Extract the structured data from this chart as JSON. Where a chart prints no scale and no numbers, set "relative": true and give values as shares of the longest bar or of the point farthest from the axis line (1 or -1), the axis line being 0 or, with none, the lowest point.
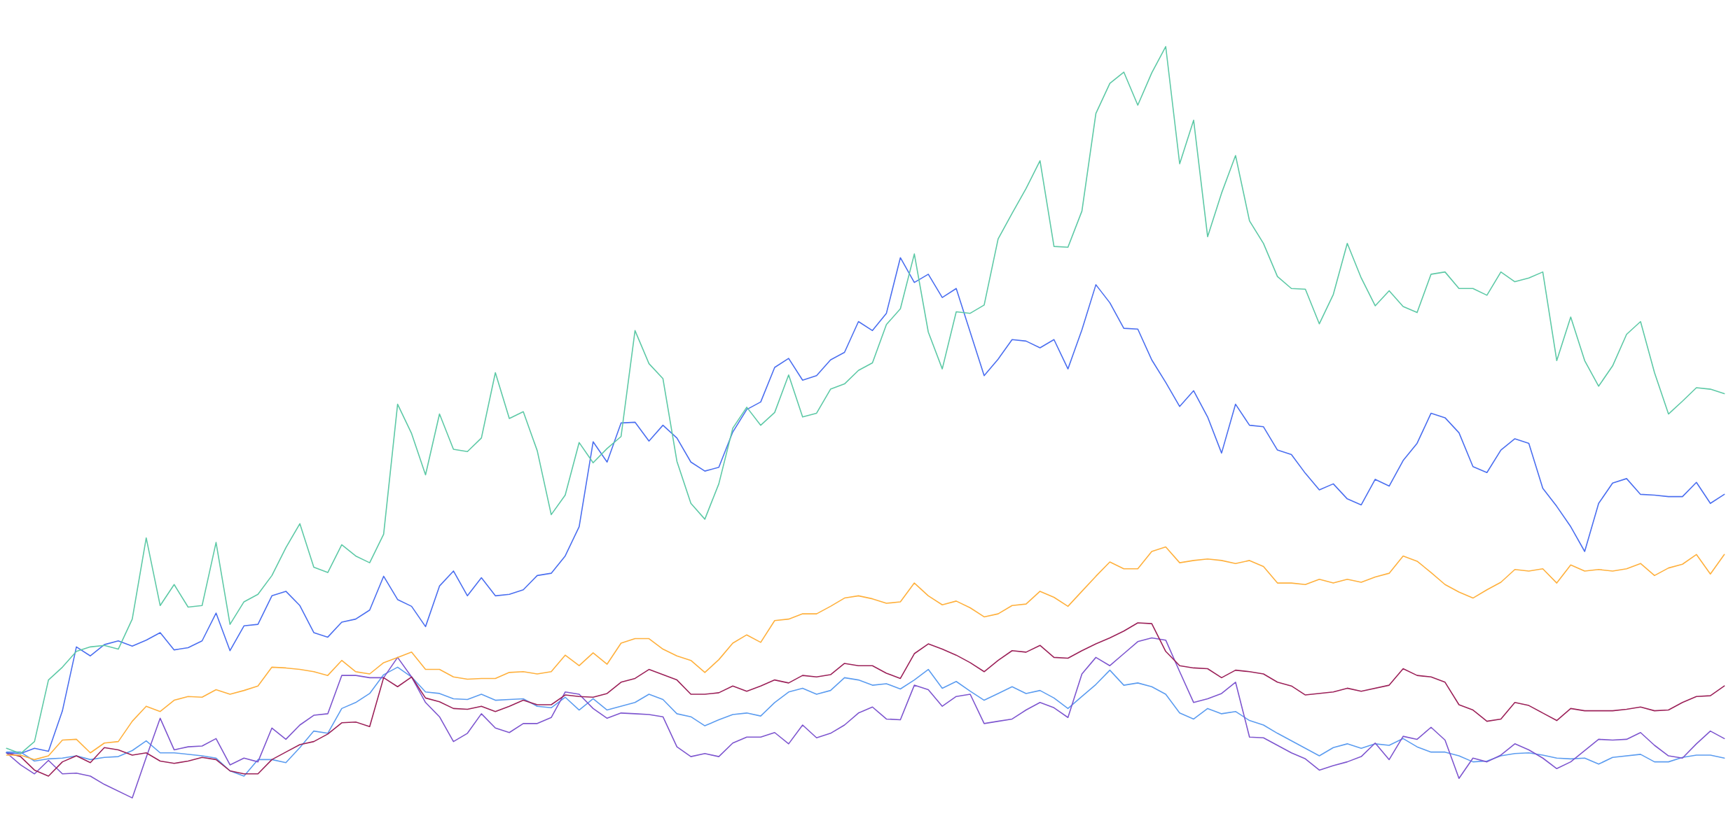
{
  "chart_data": {
    "type": "line",
    "relative": true,
    "categories": [
      null,
      null,
      null,
      null,
      null,
      null,
      null,
      null,
      null,
      null,
      null,
      null,
      null,
      null,
      null,
      null,
      null,
      null,
      null,
      null,
      null,
      null,
      null,
      null,
      null,
      null,
      null,
      null,
      null,
      null,
      null,
      null,
      null,
      null,
      null,
      null,
      null,
      null,
      null,
      null,
      null,
      null,
      null,
      null,
      null,
      null,
      null,
      null,
      null,
      null,
      null,
      null,
      null,
      null,
      null,
      null,
      null,
      null,
      null,
      null,
      null,
      null,
      null,
      null,
      null,
      null,
      null,
      null,
      null,
      null,
      null,
      null,
      null,
      null,
      null,
      null,
      null,
      null,
      null,
      null,
      null,
      null,
      null,
      null,
      null,
      null,
      null,
      null,
      null,
      null,
      null,
      null,
      null,
      null,
      null,
      null,
      null,
      null,
      null,
      null,
      null,
      null,
      null,
      null,
      null,
      null,
      null,
      null,
      null,
      null,
      null,
      null,
      null,
      null,
      null,
      null,
      null,
      null,
      null,
      null,
      null,
      null,
      null,
      null
    ],
    "series": [
      {
        "color": "#5b9cf0",
        "values": [
          0.061,
          0.061,
          0.049,
          0.052,
          0.053,
          0.056,
          0.051,
          0.054,
          0.055,
          0.063,
          0.076,
          0.06,
          0.06,
          0.058,
          0.056,
          0.053,
          0.036,
          0.029,
          0.051,
          0.051,
          0.047,
          0.067,
          0.089,
          0.086,
          0.119,
          0.127,
          0.139,
          0.164,
          0.174,
          0.161,
          0.141,
          0.139,
          0.132,
          0.131,
          0.138,
          0.13,
          0.131,
          0.132,
          0.122,
          0.12,
          0.134,
          0.117,
          0.132,
          0.117,
          0.122,
          0.127,
          0.138,
          0.131,
          0.112,
          0.108,
          0.096,
          0.104,
          0.111,
          0.113,
          0.109,
          0.127,
          0.141,
          0.146,
          0.138,
          0.143,
          0.16,
          0.157,
          0.15,
          0.152,
          0.145,
          0.157,
          0.171,
          0.146,
          0.155,
          0.142,
          0.13,
          0.139,
          0.148,
          0.139,
          0.143,
          0.133,
          0.119,
          0.135,
          0.151,
          0.17,
          0.15,
          0.153,
          0.148,
          0.138,
          0.113,
          0.105,
          0.119,
          0.112,
          0.115,
          0.103,
          0.097,
          0.086,
          0.076,
          0.066,
          0.056,
          0.067,
          0.072,
          0.066,
          0.072,
          0.07,
          0.079,
          0.068,
          0.061,
          0.061,
          0.056,
          0.048,
          0.049,
          0.056,
          0.059,
          0.06,
          0.057,
          0.053,
          0.052,
          0.053,
          0.045,
          0.054,
          0.056,
          0.058,
          0.048,
          0.048,
          0.054,
          0.057,
          0.057,
          0.053
        ]
      },
      {
        "color": "#7d55cf",
        "values": [
          0.06,
          0.044,
          0.032,
          0.05,
          0.032,
          0.033,
          0.029,
          0.018,
          0.009,
          0.0,
          0.054,
          0.106,
          0.064,
          0.068,
          0.069,
          0.079,
          0.044,
          0.053,
          0.048,
          0.093,
          0.078,
          0.097,
          0.11,
          0.112,
          0.163,
          0.163,
          0.16,
          0.16,
          0.187,
          0.161,
          0.127,
          0.108,
          0.075,
          0.086,
          0.112,
          0.093,
          0.087,
          0.099,
          0.099,
          0.107,
          0.141,
          0.138,
          0.119,
          0.106,
          0.113,
          0.112,
          0.111,
          0.108,
          0.068,
          0.055,
          0.059,
          0.055,
          0.073,
          0.081,
          0.081,
          0.087,
          0.072,
          0.097,
          0.08,
          0.086,
          0.097,
          0.113,
          0.121,
          0.105,
          0.104,
          0.15,
          0.144,
          0.122,
          0.135,
          0.138,
          0.099,
          0.102,
          0.105,
          0.117,
          0.127,
          0.12,
          0.107,
          0.165,
          0.187,
          0.176,
          0.192,
          0.208,
          0.213,
          0.21,
          0.168,
          0.127,
          0.132,
          0.139,
          0.154,
          0.081,
          0.08,
          0.07,
          0.06,
          0.052,
          0.037,
          0.043,
          0.048,
          0.055,
          0.073,
          0.051,
          0.082,
          0.078,
          0.094,
          0.077,
          0.026,
          0.053,
          0.048,
          0.057,
          0.072,
          0.064,
          0.053,
          0.039,
          0.048,
          0.063,
          0.078,
          0.077,
          0.078,
          0.087,
          0.07,
          0.056,
          0.053,
          0.072,
          0.089,
          0.079
        ]
      },
      {
        "color": "#9b2058",
        "values": [
          0.06,
          0.055,
          0.037,
          0.029,
          0.048,
          0.056,
          0.047,
          0.067,
          0.064,
          0.057,
          0.06,
          0.049,
          0.046,
          0.049,
          0.054,
          0.051,
          0.036,
          0.032,
          0.032,
          0.051,
          0.061,
          0.071,
          0.075,
          0.085,
          0.1,
          0.101,
          0.095,
          0.16,
          0.148,
          0.161,
          0.133,
          0.128,
          0.119,
          0.118,
          0.122,
          0.115,
          0.122,
          0.13,
          0.124,
          0.124,
          0.137,
          0.135,
          0.134,
          0.139,
          0.154,
          0.159,
          0.171,
          0.164,
          0.157,
          0.138,
          0.138,
          0.14,
          0.149,
          0.142,
          0.149,
          0.157,
          0.153,
          0.163,
          0.161,
          0.164,
          0.179,
          0.176,
          0.176,
          0.166,
          0.159,
          0.192,
          0.205,
          0.198,
          0.19,
          0.18,
          0.168,
          0.183,
          0.196,
          0.194,
          0.203,
          0.187,
          0.186,
          0.196,
          0.205,
          0.213,
          0.222,
          0.233,
          0.232,
          0.195,
          0.176,
          0.173,
          0.172,
          0.16,
          0.17,
          0.168,
          0.165,
          0.154,
          0.149,
          0.137,
          0.139,
          0.141,
          0.146,
          0.142,
          0.146,
          0.15,
          0.172,
          0.163,
          0.161,
          0.154,
          0.124,
          0.117,
          0.102,
          0.105,
          0.127,
          0.123,
          0.113,
          0.103,
          0.119,
          0.116,
          0.116,
          0.116,
          0.118,
          0.121,
          0.116,
          0.117,
          0.127,
          0.135,
          0.136,
          0.149
        ]
      },
      {
        "color": "#ffb03c",
        "values": [
          0.057,
          0.057,
          0.051,
          0.056,
          0.077,
          0.078,
          0.06,
          0.073,
          0.075,
          0.102,
          0.122,
          0.115,
          0.13,
          0.135,
          0.134,
          0.144,
          0.138,
          0.143,
          0.149,
          0.174,
          0.173,
          0.171,
          0.168,
          0.163,
          0.183,
          0.168,
          0.165,
          0.18,
          0.187,
          0.194,
          0.171,
          0.171,
          0.161,
          0.158,
          0.159,
          0.159,
          0.167,
          0.168,
          0.165,
          0.168,
          0.19,
          0.176,
          0.193,
          0.178,
          0.206,
          0.212,
          0.212,
          0.198,
          0.189,
          0.183,
          0.167,
          0.184,
          0.206,
          0.217,
          0.207,
          0.236,
          0.238,
          0.245,
          0.245,
          0.255,
          0.266,
          0.269,
          0.265,
          0.259,
          0.261,
          0.286,
          0.269,
          0.257,
          0.262,
          0.253,
          0.241,
          0.245,
          0.256,
          0.258,
          0.275,
          0.267,
          0.255,
          0.275,
          0.295,
          0.314,
          0.305,
          0.305,
          0.328,
          0.334,
          0.313,
          0.316,
          0.318,
          0.316,
          0.312,
          0.316,
          0.308,
          0.286,
          0.286,
          0.284,
          0.291,
          0.286,
          0.291,
          0.287,
          0.294,
          0.299,
          0.322,
          0.315,
          0.3,
          0.284,
          0.274,
          0.266,
          0.277,
          0.287,
          0.304,
          0.302,
          0.305,
          0.286,
          0.31,
          0.302,
          0.304,
          0.302,
          0.305,
          0.312,
          0.296,
          0.306,
          0.311,
          0.324,
          0.298,
          0.324
        ]
      },
      {
        "color": "#4a6ef0",
        "values": [
          0.06,
          0.059,
          0.066,
          0.062,
          0.116,
          0.201,
          0.189,
          0.204,
          0.209,
          0.202,
          0.21,
          0.22,
          0.197,
          0.2,
          0.209,
          0.246,
          0.196,
          0.229,
          0.231,
          0.269,
          0.275,
          0.256,
          0.22,
          0.214,
          0.234,
          0.238,
          0.25,
          0.295,
          0.264,
          0.255,
          0.228,
          0.282,
          0.302,
          0.269,
          0.293,
          0.269,
          0.271,
          0.277,
          0.296,
          0.299,
          0.322,
          0.361,
          0.474,
          0.447,
          0.499,
          0.5,
          0.475,
          0.496,
          0.479,
          0.447,
          0.435,
          0.44,
          0.487,
          0.517,
          0.527,
          0.573,
          0.585,
          0.556,
          0.562,
          0.583,
          0.593,
          0.634,
          0.622,
          0.645,
          0.719,
          0.686,
          0.697,
          0.666,
          0.678,
          0.62,
          0.562,
          0.584,
          0.61,
          0.608,
          0.599,
          0.61,
          0.571,
          0.623,
          0.683,
          0.659,
          0.625,
          0.624,
          0.583,
          0.553,
          0.521,
          0.542,
          0.507,
          0.459,
          0.524,
          0.496,
          0.494,
          0.463,
          0.457,
          0.432,
          0.41,
          0.418,
          0.398,
          0.39,
          0.424,
          0.415,
          0.449,
          0.472,
          0.512,
          0.506,
          0.486,
          0.441,
          0.433,
          0.463,
          0.478,
          0.472,
          0.412,
          0.388,
          0.361,
          0.328,
          0.392,
          0.419,
          0.425,
          0.404,
          0.403,
          0.401,
          0.401,
          0.42,
          0.392,
          0.404
        ]
      },
      {
        "color": "#5dc9a6",
        "values": [
          0.066,
          0.059,
          0.075,
          0.157,
          0.174,
          0.195,
          0.201,
          0.203,
          0.198,
          0.238,
          0.346,
          0.256,
          0.284,
          0.254,
          0.256,
          0.34,
          0.231,
          0.261,
          0.271,
          0.296,
          0.333,
          0.365,
          0.307,
          0.3,
          0.337,
          0.322,
          0.313,
          0.351,
          0.524,
          0.485,
          0.43,
          0.511,
          0.464,
          0.461,
          0.479,
          0.566,
          0.505,
          0.514,
          0.462,
          0.377,
          0.403,
          0.473,
          0.446,
          0.465,
          0.481,
          0.622,
          0.578,
          0.558,
          0.448,
          0.392,
          0.371,
          0.418,
          0.492,
          0.52,
          0.496,
          0.513,
          0.563,
          0.507,
          0.512,
          0.544,
          0.551,
          0.569,
          0.579,
          0.63,
          0.651,
          0.724,
          0.62,
          0.571,
          0.647,
          0.645,
          0.656,
          0.744,
          0.778,
          0.811,
          0.848,
          0.734,
          0.733,
          0.781,
          0.911,
          0.951,
          0.966,
          0.922,
          0.965,
          1.0,
          0.844,
          0.902,
          0.747,
          0.805,
          0.855,
          0.768,
          0.738,
          0.694,
          0.678,
          0.677,
          0.631,
          0.67,
          0.738,
          0.692,
          0.655,
          0.675,
          0.654,
          0.646,
          0.697,
          0.7,
          0.678,
          0.678,
          0.669,
          0.7,
          0.687,
          0.692,
          0.7,
          0.582,
          0.64,
          0.582,
          0.548,
          0.575,
          0.617,
          0.634,
          0.566,
          0.511,
          0.528,
          0.546,
          0.544,
          0.538
        ]
      }
    ]
  }
}
